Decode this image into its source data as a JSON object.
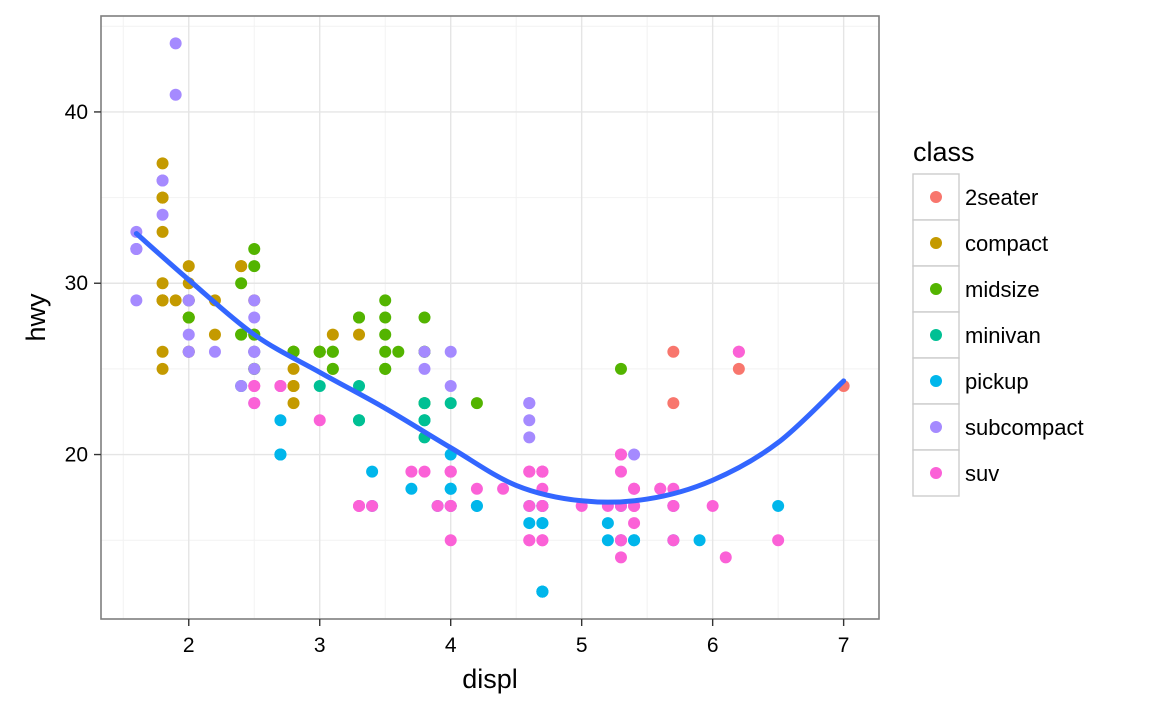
{
  "chart_data": {
    "type": "scatter",
    "xlabel": "displ",
    "ylabel": "hwy",
    "xlim": [
      1.33,
      7.27
    ],
    "ylim": [
      10.4,
      45.6
    ],
    "x_major_ticks": [
      2,
      3,
      4,
      5,
      6,
      7
    ],
    "x_minor_ticks": [
      1.5,
      2.5,
      3.5,
      4.5,
      5.5,
      6.5
    ],
    "y_major_ticks": [
      20,
      30,
      40
    ],
    "y_minor_ticks": [
      15,
      25,
      35,
      45
    ],
    "grid": true,
    "legend": {
      "title": "class",
      "position": "right",
      "entries": [
        {
          "label": "2seater",
          "color": "#F8766D"
        },
        {
          "label": "compact",
          "color": "#C49A00"
        },
        {
          "label": "midsize",
          "color": "#53B400"
        },
        {
          "label": "minivan",
          "color": "#00C094"
        },
        {
          "label": "pickup",
          "color": "#00B6EB"
        },
        {
          "label": "subcompact",
          "color": "#A58AFF"
        },
        {
          "label": "suv",
          "color": "#FB61D7"
        }
      ]
    },
    "series": [
      {
        "name": "2seater",
        "points": [
          [
            5.7,
            26
          ],
          [
            5.7,
            23
          ],
          [
            6.2,
            26
          ],
          [
            6.2,
            25
          ],
          [
            7.0,
            24
          ]
        ]
      },
      {
        "name": "compact",
        "points": [
          [
            1.8,
            29
          ],
          [
            1.8,
            29
          ],
          [
            2.0,
            31
          ],
          [
            2.0,
            30
          ],
          [
            2.8,
            26
          ],
          [
            2.8,
            26
          ],
          [
            3.1,
            27
          ],
          [
            1.8,
            26
          ],
          [
            1.8,
            25
          ],
          [
            2.0,
            28
          ],
          [
            2.0,
            28
          ],
          [
            2.8,
            24
          ],
          [
            2.8,
            25
          ],
          [
            3.1,
            25
          ],
          [
            2.2,
            27
          ],
          [
            2.2,
            29
          ],
          [
            2.4,
            31
          ],
          [
            2.4,
            31
          ],
          [
            3.0,
            26
          ],
          [
            3.0,
            26
          ],
          [
            3.3,
            27
          ],
          [
            1.8,
            33
          ],
          [
            1.8,
            35
          ],
          [
            1.8,
            37
          ],
          [
            1.8,
            35
          ],
          [
            1.8,
            29
          ],
          [
            1.8,
            30
          ],
          [
            2.5,
            29
          ],
          [
            2.5,
            27
          ],
          [
            2.8,
            24
          ],
          [
            2.8,
            23
          ],
          [
            2.0,
            29
          ],
          [
            1.9,
            29
          ],
          [
            2.0,
            26
          ],
          [
            2.0,
            26
          ]
        ]
      },
      {
        "name": "midsize",
        "points": [
          [
            2.8,
            26
          ],
          [
            2.4,
            27
          ],
          [
            2.4,
            30
          ],
          [
            3.1,
            26
          ],
          [
            3.5,
            29
          ],
          [
            3.6,
            26
          ],
          [
            2.4,
            27
          ],
          [
            3.0,
            26
          ],
          [
            3.3,
            28
          ],
          [
            3.5,
            25
          ],
          [
            3.5,
            28
          ],
          [
            3.8,
            26
          ],
          [
            3.8,
            28
          ],
          [
            2.5,
            32
          ],
          [
            2.5,
            31
          ],
          [
            3.5,
            25
          ],
          [
            3.5,
            27
          ],
          [
            3.8,
            26
          ],
          [
            5.3,
            25
          ],
          [
            4.2,
            23
          ],
          [
            3.1,
            25
          ],
          [
            3.0,
            26
          ],
          [
            3.5,
            26
          ],
          [
            2.5,
            27
          ],
          [
            2.5,
            25
          ],
          [
            2.0,
            28
          ],
          [
            2.0,
            29
          ],
          [
            2.8,
            26
          ],
          [
            3.1,
            26
          ],
          [
            3.3,
            28
          ],
          [
            3.8,
            23
          ],
          [
            2.5,
            26
          ],
          [
            2.5,
            25
          ]
        ]
      },
      {
        "name": "minivan",
        "points": [
          [
            2.4,
            24
          ],
          [
            3.0,
            24
          ],
          [
            3.3,
            22
          ],
          [
            3.3,
            22
          ],
          [
            3.3,
            24
          ],
          [
            3.8,
            21
          ],
          [
            3.8,
            22
          ],
          [
            3.8,
            22
          ],
          [
            4.0,
            23
          ],
          [
            3.8,
            23
          ]
        ]
      },
      {
        "name": "pickup",
        "points": [
          [
            2.7,
            20
          ],
          [
            2.7,
            20
          ],
          [
            2.7,
            22
          ],
          [
            2.7,
            20
          ],
          [
            3.4,
            17
          ],
          [
            3.4,
            19
          ],
          [
            4.0,
            17
          ],
          [
            4.0,
            18
          ],
          [
            4.0,
            18
          ],
          [
            4.0,
            20
          ],
          [
            4.2,
            17
          ],
          [
            4.2,
            17
          ],
          [
            4.7,
            17
          ],
          [
            4.7,
            12
          ],
          [
            4.7,
            16
          ],
          [
            5.2,
            16
          ],
          [
            5.2,
            15
          ],
          [
            5.7,
            15
          ],
          [
            5.9,
            15
          ],
          [
            4.7,
            12
          ],
          [
            4.7,
            12
          ],
          [
            4.7,
            17
          ],
          [
            4.7,
            16
          ],
          [
            5.3,
            17
          ],
          [
            5.3,
            15
          ],
          [
            5.7,
            17
          ],
          [
            6.5,
            17
          ],
          [
            3.7,
            18
          ],
          [
            4.6,
            17
          ],
          [
            4.6,
            16
          ],
          [
            5.4,
            15
          ],
          [
            5.4,
            15
          ],
          [
            4.7,
            17
          ],
          [
            3.9,
            17
          ],
          [
            4.0,
            17
          ]
        ]
      },
      {
        "name": "subcompact",
        "points": [
          [
            3.8,
            26
          ],
          [
            3.8,
            25
          ],
          [
            4.0,
            26
          ],
          [
            4.0,
            24
          ],
          [
            4.6,
            21
          ],
          [
            4.6,
            22
          ],
          [
            4.6,
            23
          ],
          [
            4.6,
            23
          ],
          [
            5.4,
            20
          ],
          [
            1.6,
            33
          ],
          [
            1.6,
            32
          ],
          [
            1.6,
            32
          ],
          [
            1.6,
            29
          ],
          [
            1.6,
            32
          ],
          [
            1.8,
            34
          ],
          [
            1.8,
            36
          ],
          [
            1.8,
            36
          ],
          [
            2.0,
            29
          ],
          [
            2.4,
            24
          ],
          [
            2.5,
            26
          ],
          [
            2.5,
            26
          ],
          [
            2.2,
            26
          ],
          [
            2.0,
            27
          ],
          [
            2.0,
            26
          ],
          [
            2.5,
            28
          ],
          [
            2.7,
            24
          ],
          [
            2.5,
            25
          ],
          [
            1.9,
            44
          ],
          [
            1.9,
            41
          ],
          [
            2.0,
            29
          ],
          [
            2.5,
            26
          ],
          [
            2.5,
            29
          ],
          [
            2.0,
            26
          ],
          [
            2.5,
            23
          ]
        ]
      },
      {
        "name": "suv",
        "points": [
          [
            5.3,
            20
          ],
          [
            5.3,
            15
          ],
          [
            5.3,
            20
          ],
          [
            5.7,
            17
          ],
          [
            6.0,
            17
          ],
          [
            5.7,
            17
          ],
          [
            5.7,
            18
          ],
          [
            6.1,
            14
          ],
          [
            6.5,
            15
          ],
          [
            3.7,
            19
          ],
          [
            3.9,
            17
          ],
          [
            4.7,
            19
          ],
          [
            4.7,
            19
          ],
          [
            4.7,
            15
          ],
          [
            4.7,
            17
          ],
          [
            5.2,
            17
          ],
          [
            4.6,
            19
          ],
          [
            4.7,
            18
          ],
          [
            5.4,
            18
          ],
          [
            5.4,
            17
          ],
          [
            5.4,
            17
          ],
          [
            4.0,
            17
          ],
          [
            4.0,
            19
          ],
          [
            4.0,
            15
          ],
          [
            4.0,
            17
          ],
          [
            4.6,
            19
          ],
          [
            5.0,
            17
          ],
          [
            4.2,
            18
          ],
          [
            4.4,
            18
          ],
          [
            4.6,
            17
          ],
          [
            5.4,
            18
          ],
          [
            5.4,
            17
          ],
          [
            5.4,
            16
          ],
          [
            3.3,
            17
          ],
          [
            3.3,
            17
          ],
          [
            3.8,
            19
          ],
          [
            3.0,
            22
          ],
          [
            4.6,
            15
          ],
          [
            4.7,
            19
          ],
          [
            5.7,
            15
          ],
          [
            4.0,
            19
          ],
          [
            4.7,
            17
          ],
          [
            5.6,
            18
          ],
          [
            5.3,
            19
          ],
          [
            5.6,
            18
          ],
          [
            3.3,
            17
          ],
          [
            2.5,
            24
          ],
          [
            2.5,
            23
          ],
          [
            4.0,
            17
          ],
          [
            6.2,
            26
          ],
          [
            5.3,
            17
          ],
          [
            5.3,
            14
          ],
          [
            4.7,
            15
          ],
          [
            2.7,
            24
          ],
          [
            3.4,
            17
          ],
          [
            2.5,
            24
          ],
          [
            2.7,
            24
          ],
          [
            4.0,
            19
          ],
          [
            4.6,
            15
          ],
          [
            5.3,
            15
          ]
        ]
      }
    ],
    "smooth_line": {
      "color": "#3366FF",
      "points": [
        [
          1.6,
          32.9
        ],
        [
          2.0,
          30.2
        ],
        [
          2.5,
          27.0
        ],
        [
          3.0,
          24.8
        ],
        [
          3.5,
          22.7
        ],
        [
          4.0,
          20.4
        ],
        [
          4.5,
          18.2
        ],
        [
          5.0,
          17.3
        ],
        [
          5.5,
          17.4
        ],
        [
          6.0,
          18.5
        ],
        [
          6.5,
          20.7
        ],
        [
          7.0,
          24.3
        ]
      ]
    }
  }
}
